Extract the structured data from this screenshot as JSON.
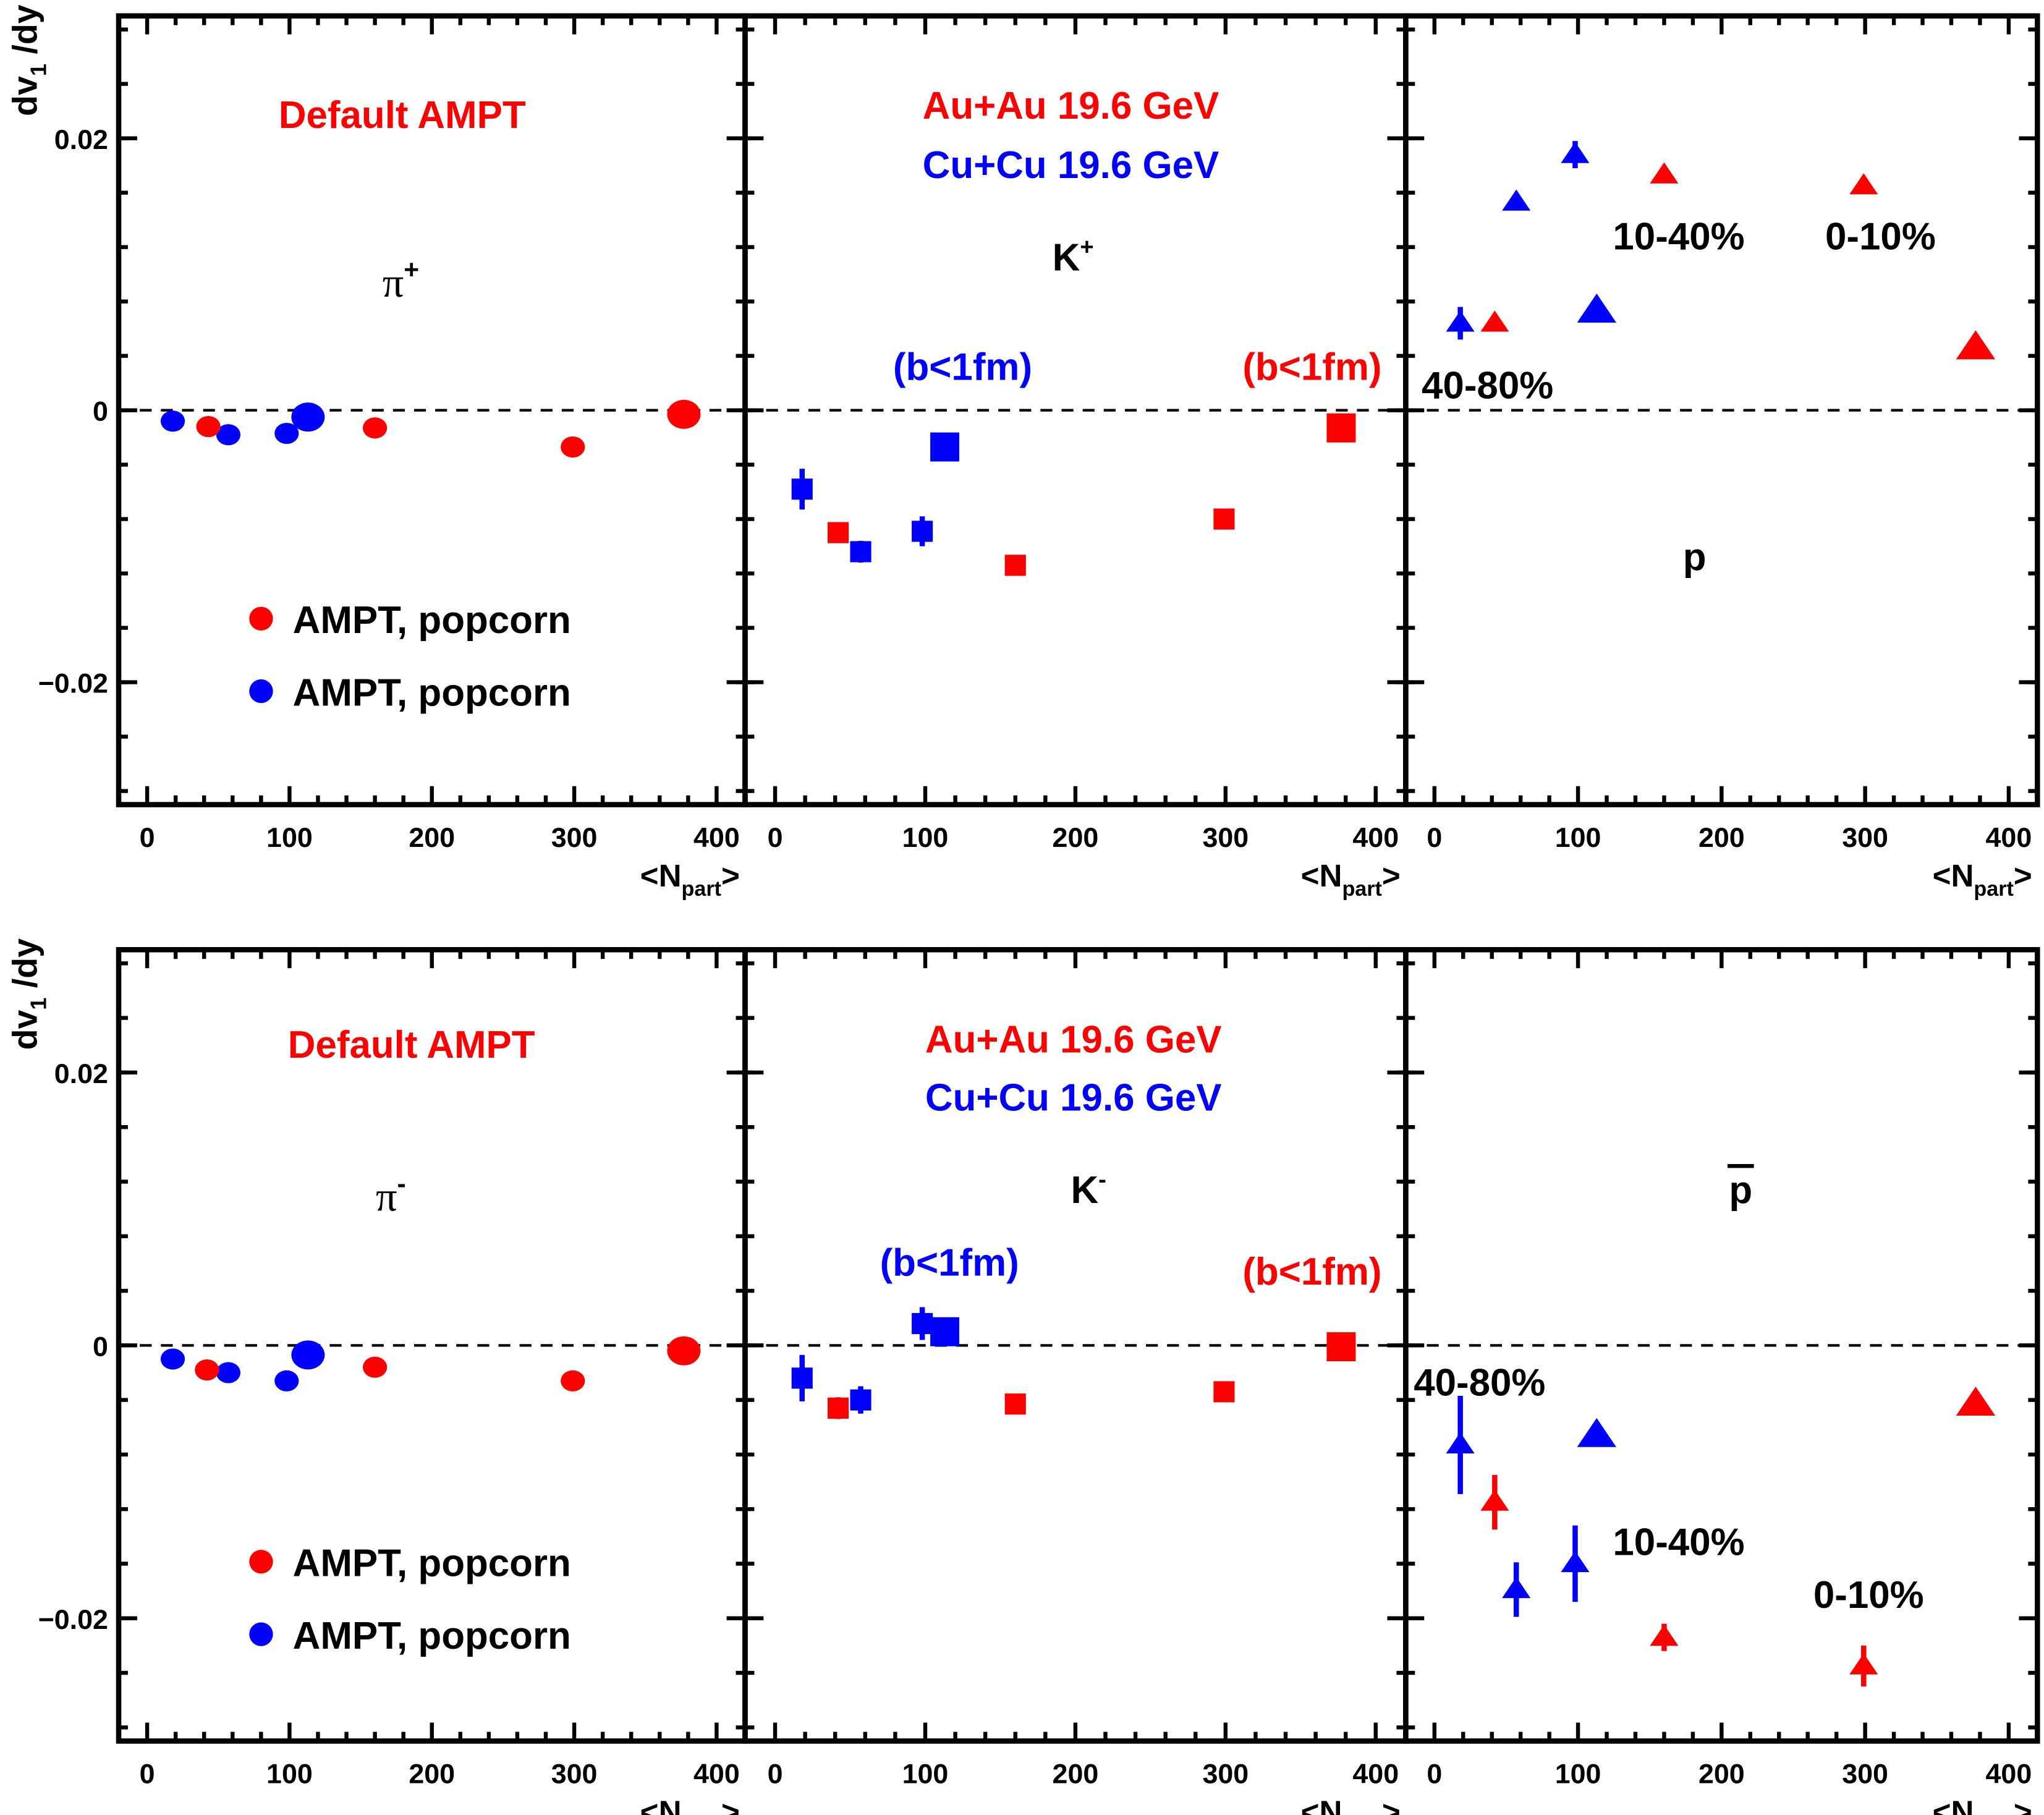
{
  "axis": {
    "ylabel": {
      "main": "dv",
      "sub": "1",
      "rest": " /dy"
    },
    "xlabel": {
      "main": "<N",
      "sub": "part",
      "rest": ">"
    },
    "x_ticks": [
      "0",
      "100",
      "200",
      "300",
      "400"
    ],
    "y_ticks": [
      "0.02",
      "0",
      "−0.02"
    ]
  },
  "colors": {
    "auau": "#ff0000",
    "cucu": "#0000ff"
  },
  "labels": {
    "default_ampt": "Default AMPT",
    "legend_red": "AMPT, popcorn",
    "legend_blue": "AMPT, popcorn",
    "auau": "Au+Au 19.6 GeV",
    "cucu": "Cu+Cu 19.6 GeV",
    "b_lt_1fm": "(b<1fm)",
    "cent_40_80": "40-80%",
    "cent_10_40": "10-40%",
    "cent_0_10": "0-10%",
    "pi_plus": {
      "main": "π",
      "sup": "+"
    },
    "pi_minus": {
      "main": "π",
      "sup": "-"
    },
    "k_plus": {
      "main": "K",
      "sup": "+"
    },
    "k_minus": {
      "main": "K",
      "sup": "-"
    },
    "proton": "p",
    "antiproton": "p"
  },
  "chart_data": [
    {
      "type": "scatter",
      "panel": "pi+",
      "marker": "circle",
      "xlim": [
        -20,
        420
      ],
      "ylim": [
        -0.029,
        0.029
      ],
      "grid": false,
      "reference_line_y": 0,
      "series": [
        {
          "color": "#0000ff",
          "x": [
            18,
            57,
            98,
            113
          ],
          "y": [
            -0.0008,
            -0.0018,
            -0.0017,
            -0.0005
          ],
          "big": [
            false,
            false,
            false,
            true
          ]
        },
        {
          "color": "#ff0000",
          "x": [
            43,
            160,
            299,
            377
          ],
          "y": [
            -0.0012,
            -0.0013,
            -0.0027,
            -0.0003
          ],
          "big": [
            false,
            false,
            false,
            true
          ]
        }
      ]
    },
    {
      "type": "scatter",
      "panel": "K+",
      "marker": "square",
      "xlim": [
        -20,
        420
      ],
      "ylim": [
        -0.029,
        0.029
      ],
      "grid": false,
      "reference_line_y": 0,
      "series": [
        {
          "color": "#0000ff",
          "x": [
            18,
            57,
            98,
            113
          ],
          "y": [
            -0.0058,
            -0.0104,
            -0.0089,
            -0.0027
          ],
          "yerr": [
            0.0015,
            0.0008,
            0.0011,
            0
          ],
          "big": [
            false,
            false,
            false,
            true
          ]
        },
        {
          "color": "#ff0000",
          "x": [
            42,
            160,
            299,
            377
          ],
          "y": [
            -0.009,
            -0.0114,
            -0.008,
            -0.0013
          ],
          "yerr": [
            0.0007,
            0,
            0,
            0
          ],
          "big": [
            false,
            false,
            false,
            true
          ]
        }
      ]
    },
    {
      "type": "scatter",
      "panel": "p",
      "marker": "triangle",
      "xlim": [
        -20,
        420
      ],
      "ylim": [
        -0.029,
        0.029
      ],
      "grid": false,
      "reference_line_y": 0,
      "series": [
        {
          "color": "#0000ff",
          "x": [
            18,
            57,
            98,
            113
          ],
          "y": [
            0.0064,
            0.0153,
            0.0188,
            0.0073
          ],
          "yerr": [
            0.0012,
            0,
            0.001,
            0
          ],
          "big": [
            false,
            false,
            false,
            true
          ]
        },
        {
          "color": "#ff0000",
          "x": [
            42,
            160,
            299,
            377
          ],
          "y": [
            0.0064,
            0.0173,
            0.0165,
            0.0046
          ],
          "yerr": [
            0,
            0,
            0,
            0
          ],
          "big": [
            false,
            false,
            false,
            true
          ]
        }
      ]
    },
    {
      "type": "scatter",
      "panel": "pi-",
      "marker": "circle",
      "xlim": [
        -20,
        420
      ],
      "ylim": [
        -0.029,
        0.029
      ],
      "grid": false,
      "reference_line_y": 0,
      "series": [
        {
          "color": "#0000ff",
          "x": [
            18,
            57,
            98,
            113
          ],
          "y": [
            -0.001,
            -0.002,
            -0.0026,
            -0.0007
          ],
          "big": [
            false,
            false,
            false,
            true
          ]
        },
        {
          "color": "#ff0000",
          "x": [
            42,
            160,
            299,
            377
          ],
          "y": [
            -0.0018,
            -0.0016,
            -0.0026,
            -0.0004
          ],
          "big": [
            false,
            false,
            false,
            true
          ]
        }
      ]
    },
    {
      "type": "scatter",
      "panel": "K-",
      "marker": "square",
      "xlim": [
        -20,
        420
      ],
      "ylim": [
        -0.029,
        0.029
      ],
      "grid": false,
      "reference_line_y": 0,
      "series": [
        {
          "color": "#0000ff",
          "x": [
            18,
            57,
            98,
            113
          ],
          "y": [
            -0.0024,
            -0.004,
            0.0016,
            0.001
          ],
          "yerr": [
            0.0017,
            0.001,
            0.0012,
            0
          ],
          "big": [
            false,
            false,
            false,
            true
          ]
        },
        {
          "color": "#ff0000",
          "x": [
            42,
            160,
            299,
            377
          ],
          "y": [
            -0.0046,
            -0.0043,
            -0.0034,
            -0.0001
          ],
          "yerr": [
            0.0008,
            0,
            0,
            0
          ],
          "big": [
            false,
            false,
            false,
            true
          ]
        }
      ]
    },
    {
      "type": "scatter",
      "panel": "pbar",
      "marker": "triangle",
      "xlim": [
        -20,
        420
      ],
      "ylim": [
        -0.029,
        0.029
      ],
      "grid": false,
      "reference_line_y": 0,
      "series": [
        {
          "color": "#0000ff",
          "x": [
            18,
            57,
            98,
            113
          ],
          "y": [
            -0.0073,
            -0.0179,
            -0.016,
            -0.0066
          ],
          "yerr": [
            0.0036,
            0.002,
            0.0028,
            0.0008
          ],
          "big": [
            false,
            false,
            false,
            true
          ]
        },
        {
          "color": "#ff0000",
          "x": [
            42,
            160,
            299,
            377
          ],
          "y": [
            -0.0115,
            -0.0214,
            -0.0235,
            -0.0043
          ],
          "yerr": [
            0.002,
            0.001,
            0.0015,
            0
          ],
          "big": [
            false,
            false,
            false,
            true
          ]
        }
      ]
    }
  ]
}
